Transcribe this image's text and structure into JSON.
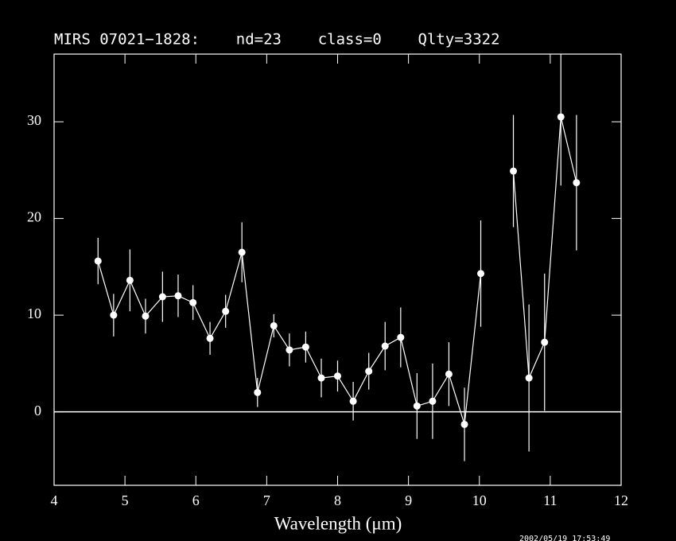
{
  "chart_data": {
    "type": "line",
    "title": "MIRS 07021−1828:    nd=23    class=0    Qlty=3322",
    "xlabel": "Wavelength (μm)",
    "timestamp": "2002/05/19 17:53:49",
    "x": [
      4.62,
      4.84,
      5.07,
      5.29,
      5.53,
      5.75,
      5.96,
      6.2,
      6.42,
      6.65,
      6.87,
      7.1,
      7.32,
      7.55,
      7.77,
      8.0,
      8.22,
      8.44,
      8.67,
      8.89,
      9.12,
      9.34,
      9.57,
      9.79,
      10.02,
      10.25,
      10.48,
      10.7,
      10.92,
      11.15,
      11.37
    ],
    "series": [
      {
        "color": "#ffffff",
        "values": [
          15.6,
          10.0,
          13.6,
          9.9,
          11.9,
          12.0,
          11.3,
          7.6,
          10.4,
          16.5,
          2.0,
          8.9,
          6.4,
          6.7,
          3.5,
          3.7,
          1.1,
          4.2,
          6.8,
          7.7,
          0.6,
          1.1,
          3.9,
          -1.3,
          14.3,
          null,
          24.9,
          3.5,
          7.2,
          30.5,
          23.7
        ],
        "errors": [
          2.4,
          2.2,
          3.2,
          1.8,
          2.6,
          2.2,
          1.8,
          1.7,
          1.7,
          3.1,
          1.5,
          1.2,
          1.7,
          1.6,
          2.0,
          1.6,
          2.0,
          1.9,
          2.5,
          3.1,
          3.4,
          3.9,
          3.3,
          3.8,
          5.5,
          null,
          5.8,
          7.6,
          7.1,
          7.1,
          7.0
        ]
      }
    ],
    "reference_line": 0,
    "xlim": [
      4,
      12
    ],
    "ylim": [
      -7.6,
      37
    ],
    "xticks": [
      4,
      5,
      6,
      7,
      8,
      9,
      10,
      11,
      12
    ],
    "yticks": [
      0,
      10,
      20,
      30
    ]
  }
}
